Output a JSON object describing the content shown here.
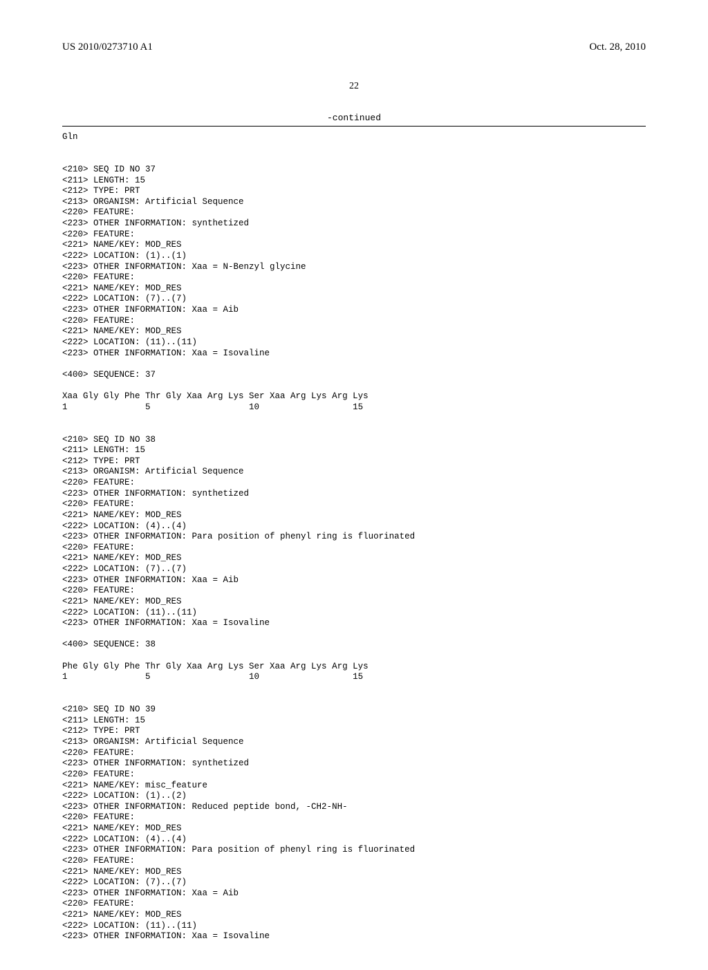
{
  "header": {
    "pub_no": "US 2010/0273710 A1",
    "pub_date": "Oct. 28, 2010"
  },
  "page_number": "22",
  "continued_label": "-continued",
  "residual_line": "Gln",
  "sequences": [
    {
      "tags": [
        "<210> SEQ ID NO 37",
        "<211> LENGTH: 15",
        "<212> TYPE: PRT",
        "<213> ORGANISM: Artificial Sequence",
        "<220> FEATURE:",
        "<223> OTHER INFORMATION: synthetized",
        "<220> FEATURE:",
        "<221> NAME/KEY: MOD_RES",
        "<222> LOCATION: (1)..(1)",
        "<223> OTHER INFORMATION: Xaa = N-Benzyl glycine",
        "<220> FEATURE:",
        "<221> NAME/KEY: MOD_RES",
        "<222> LOCATION: (7)..(7)",
        "<223> OTHER INFORMATION: Xaa = Aib",
        "<220> FEATURE:",
        "<221> NAME/KEY: MOD_RES",
        "<222> LOCATION: (11)..(11)",
        "<223> OTHER INFORMATION: Xaa = Isovaline"
      ],
      "seq_header": "<400> SEQUENCE: 37",
      "seq_lines": [
        "Xaa Gly Gly Phe Thr Gly Xaa Arg Lys Ser Xaa Arg Lys Arg Lys",
        "1               5                   10                  15"
      ]
    },
    {
      "tags": [
        "<210> SEQ ID NO 38",
        "<211> LENGTH: 15",
        "<212> TYPE: PRT",
        "<213> ORGANISM: Artificial Sequence",
        "<220> FEATURE:",
        "<223> OTHER INFORMATION: synthetized",
        "<220> FEATURE:",
        "<221> NAME/KEY: MOD_RES",
        "<222> LOCATION: (4)..(4)",
        "<223> OTHER INFORMATION: Para position of phenyl ring is fluorinated",
        "<220> FEATURE:",
        "<221> NAME/KEY: MOD_RES",
        "<222> LOCATION: (7)..(7)",
        "<223> OTHER INFORMATION: Xaa = Aib",
        "<220> FEATURE:",
        "<221> NAME/KEY: MOD_RES",
        "<222> LOCATION: (11)..(11)",
        "<223> OTHER INFORMATION: Xaa = Isovaline"
      ],
      "seq_header": "<400> SEQUENCE: 38",
      "seq_lines": [
        "Phe Gly Gly Phe Thr Gly Xaa Arg Lys Ser Xaa Arg Lys Arg Lys",
        "1               5                   10                  15"
      ]
    },
    {
      "tags": [
        "<210> SEQ ID NO 39",
        "<211> LENGTH: 15",
        "<212> TYPE: PRT",
        "<213> ORGANISM: Artificial Sequence",
        "<220> FEATURE:",
        "<223> OTHER INFORMATION: synthetized",
        "<220> FEATURE:",
        "<221> NAME/KEY: misc_feature",
        "<222> LOCATION: (1)..(2)",
        "<223> OTHER INFORMATION: Reduced peptide bond, -CH2-NH-",
        "<220> FEATURE:",
        "<221> NAME/KEY: MOD_RES",
        "<222> LOCATION: (4)..(4)",
        "<223> OTHER INFORMATION: Para position of phenyl ring is fluorinated",
        "<220> FEATURE:",
        "<221> NAME/KEY: MOD_RES",
        "<222> LOCATION: (7)..(7)",
        "<223> OTHER INFORMATION: Xaa = Aib",
        "<220> FEATURE:",
        "<221> NAME/KEY: MOD_RES",
        "<222> LOCATION: (11)..(11)",
        "<223> OTHER INFORMATION: Xaa = Isovaline"
      ],
      "seq_header": "",
      "seq_lines": []
    }
  ]
}
